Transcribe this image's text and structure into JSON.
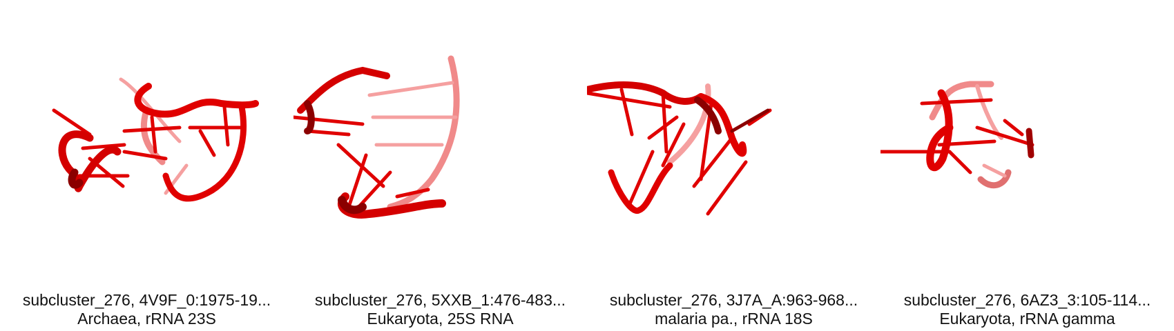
{
  "panels": [
    {
      "line1": "subcluster_276, 4V9F_0:1975-19...",
      "line2": "Archaea, rRNA 23S",
      "icon": "rna-structure-icon"
    },
    {
      "line1": "subcluster_276, 5XXB_1:476-483...",
      "line2": "Eukaryota, 25S RNA",
      "icon": "rna-structure-icon"
    },
    {
      "line1": "subcluster_276, 3J7A_A:963-968...",
      "line2": "malaria pa., rRNA 18S",
      "icon": "rna-structure-icon"
    },
    {
      "line1": "subcluster_276, 6AZ3_3:105-114...",
      "line2": "Eukaryota, rRNA gamma",
      "icon": "rna-structure-icon"
    }
  ],
  "colors": {
    "backbone": "#e00000",
    "backbone_dark": "#8b0000",
    "backbone_light": "#f08080",
    "text": "#111111"
  }
}
